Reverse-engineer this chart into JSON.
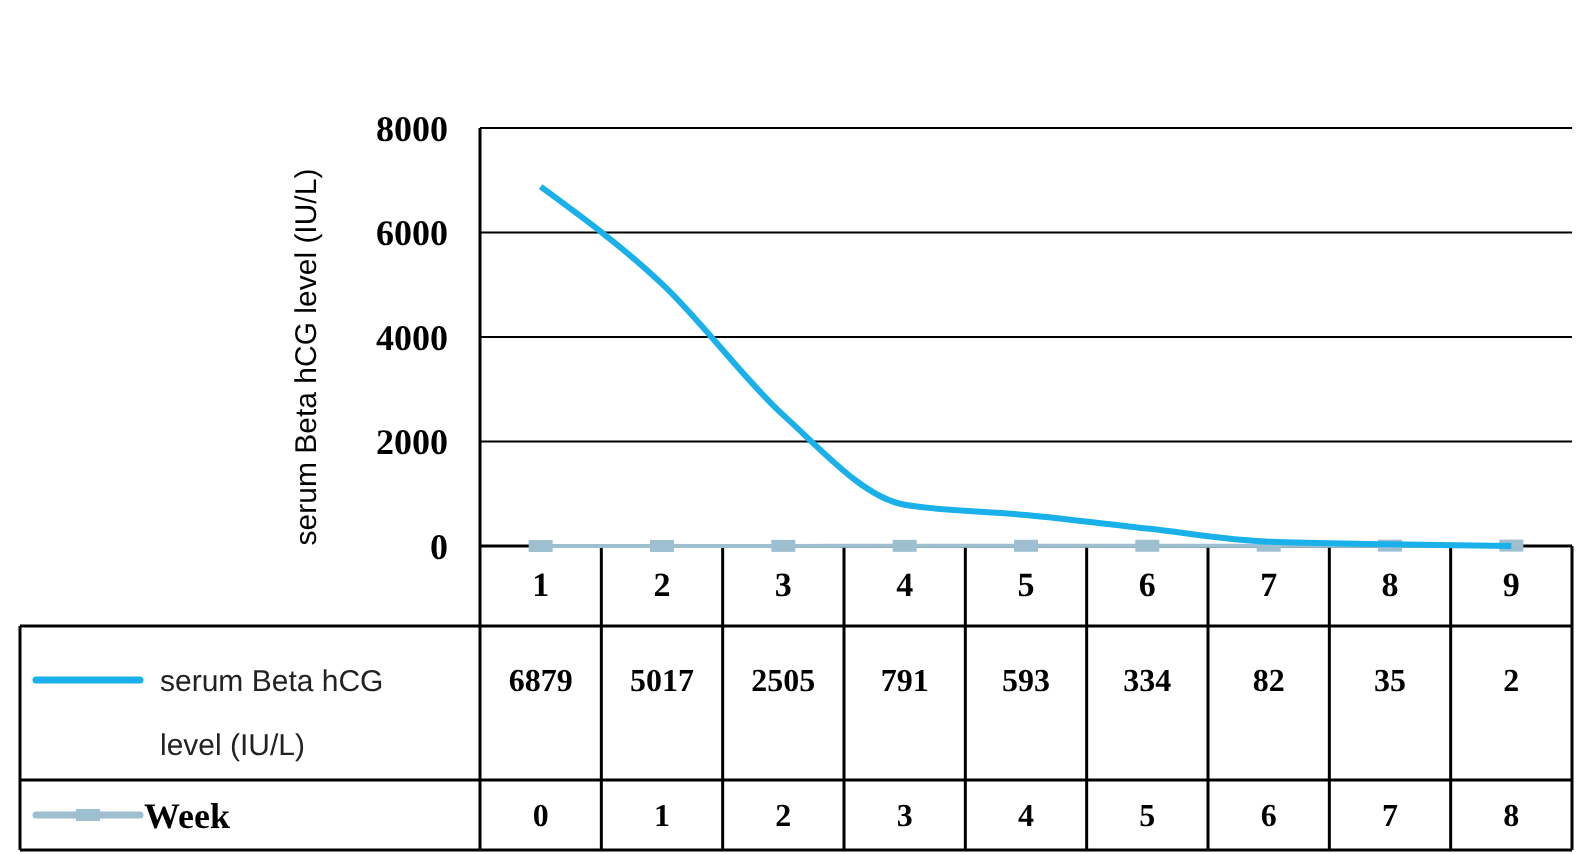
{
  "chart_data": {
    "type": "line",
    "ylabel": "serum Beta hCG level  (IU/L)",
    "categories": [
      "1",
      "2",
      "3",
      "4",
      "5",
      "6",
      "7",
      "8",
      "9"
    ],
    "series": [
      {
        "name": "serum Beta hCG level (IU/L)",
        "color": "#1ab0ea",
        "values": [
          6879,
          5017,
          2505,
          791,
          593,
          334,
          82,
          35,
          2
        ],
        "marker": "none"
      },
      {
        "name": "Week",
        "color": "#9dbfcf",
        "values": [
          0,
          1,
          2,
          3,
          4,
          5,
          6,
          7,
          8
        ],
        "marker": "square"
      }
    ],
    "ylim": [
      0,
      8000
    ],
    "yticks": [
      0,
      2000,
      4000,
      6000,
      8000
    ],
    "grid": "y",
    "legend": "bottom",
    "data_labels": true
  }
}
